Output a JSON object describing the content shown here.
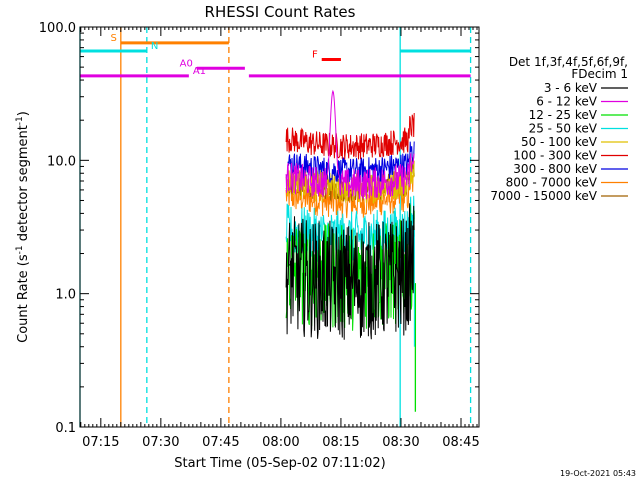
{
  "chart_data": {
    "type": "line",
    "title": "RHESSI Count Rates",
    "xlabel": "Start Time (05-Sep-02 07:11:02)",
    "ylabel_main": "Count Rate (s",
    "ylabel_sup1": "-1",
    "ylabel_mid": " detector segment",
    "ylabel_sup2": "-1",
    "ylabel_end": ")",
    "y_scale": "log",
    "ylim": [
      0.1,
      100
    ],
    "y_ticks": [
      {
        "value": 0.1,
        "label": "0.1"
      },
      {
        "value": 1,
        "label": "1.0"
      },
      {
        "value": 10,
        "label": "10.0"
      },
      {
        "value": 100,
        "label": "100.0"
      }
    ],
    "xlim_minutes_after_0711": [
      -1.2,
      98.5
    ],
    "x_ticks": [
      {
        "minute": 4,
        "label": "07:15"
      },
      {
        "minute": 19,
        "label": "07:30"
      },
      {
        "minute": 34,
        "label": "07:45"
      },
      {
        "minute": 49,
        "label": "08:00"
      },
      {
        "minute": 64,
        "label": "08:15"
      },
      {
        "minute": 79,
        "label": "08:30"
      },
      {
        "minute": 94,
        "label": "08:45"
      }
    ],
    "grid": false,
    "legend_header": [
      "Det 1f,3f,4f,5f,6f,9f,",
      "FDecim 1"
    ],
    "legend_placement": "right",
    "series": [
      {
        "name": "3 - 6 keV",
        "color": "#000000",
        "level": 1.4,
        "noise": 0.45
      },
      {
        "name": "6 - 12 keV",
        "color": "#e000e0",
        "level": 7.5,
        "noise": 0.12,
        "peak": 33
      },
      {
        "name": "12 - 25 keV",
        "color": "#00e000",
        "level": 1.5,
        "noise": 0.4
      },
      {
        "name": "25 - 50 keV",
        "color": "#00e0e0",
        "level": 3.0,
        "noise": 0.2
      },
      {
        "name": "50 - 100 keV",
        "color": "#e0c000",
        "level": 7.0,
        "noise": 0.12
      },
      {
        "name": "100 - 300 keV",
        "color": "#e00000",
        "level": 14.5,
        "noise": 0.1
      },
      {
        "name": "300 - 800 keV",
        "color": "#0000e0",
        "level": 9.5,
        "noise": 0.1
      },
      {
        "name": "800 - 7000 keV",
        "color": "#ff8000",
        "level": 5.5,
        "noise": 0.12
      },
      {
        "name": "7000 - 15000 keV",
        "color": "#a06000",
        "level": 7.0,
        "noise": 0.1
      }
    ],
    "data_interval_minutes": [
      50.3,
      82.3
    ],
    "annotations": [
      {
        "label": "S",
        "color": "#ff8000",
        "y": 76,
        "x_start": 9,
        "x_end": 36
      },
      {
        "label": "N",
        "color": "#00e0e0",
        "y": 66,
        "x_start": -1.2,
        "x_end": 15.5
      },
      {
        "label": "N",
        "color": "#00e0e0",
        "y": 66,
        "x_start": 78.8,
        "x_end": 96.4
      },
      {
        "label": "F",
        "color": "#ff0000",
        "y": 57,
        "x_start": 59.2,
        "x_end": 64
      },
      {
        "label": "A0",
        "color": "#e000e0",
        "y": 49,
        "x_start": 28,
        "x_end": 40
      },
      {
        "label": "A1",
        "color": "#e000e0",
        "y": 43,
        "x_start": -1.2,
        "x_end": 26
      },
      {
        "label": "A1",
        "color": "#e000e0",
        "y": 43,
        "x_start": 41,
        "x_end": 96.4
      }
    ],
    "vertical_markers": [
      {
        "minute": -1.2,
        "color": "#00e0e0",
        "style": "solid"
      },
      {
        "minute": 9,
        "color": "#ff8000",
        "style": "solid"
      },
      {
        "minute": 15.5,
        "color": "#00e0e0",
        "style": "dashed"
      },
      {
        "minute": 36,
        "color": "#ff8000",
        "style": "dashed"
      },
      {
        "minute": 78.8,
        "color": "#00e0e0",
        "style": "solid"
      },
      {
        "minute": 96.4,
        "color": "#00e0e0",
        "style": "dashed"
      }
    ]
  },
  "footer_date": "19-Oct-2021 05:43"
}
